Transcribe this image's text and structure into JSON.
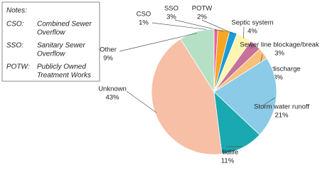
{
  "chart_data": {
    "type": "pie",
    "categories": [
      "CSO",
      "SSO",
      "POTW",
      "Septic system",
      "Sewer line blockage/break",
      "Boat discharge",
      "Storm water runoff",
      "Wildlife",
      "Unknown",
      "Other"
    ],
    "values": [
      1,
      3,
      2,
      4,
      3,
      3,
      21,
      11,
      43,
      9
    ],
    "value_labels": [
      "1%",
      "3%",
      "2%",
      "4%",
      "3%",
      "3%",
      "21%",
      "11%",
      "43%",
      "9%"
    ],
    "colors": [
      "#e8609a",
      "#f5a623",
      "#1a9ad6",
      "#fdf5b0",
      "#c6729a",
      "#f8c07a",
      "#8ccbe8",
      "#1aa9b0",
      "#f7bfa5",
      "#b5e0c5"
    ]
  },
  "notes": {
    "title": "Notes:",
    "items": [
      {
        "abbr": "CSO:",
        "lines": [
          "Combined Sewer",
          "Overflow"
        ]
      },
      {
        "abbr": "SSO:",
        "lines": [
          "Sanitary Sewer",
          "Overflow"
        ]
      },
      {
        "abbr": "POTW:",
        "lines": [
          "Publicly Owned",
          "Treatment Works"
        ]
      }
    ]
  }
}
